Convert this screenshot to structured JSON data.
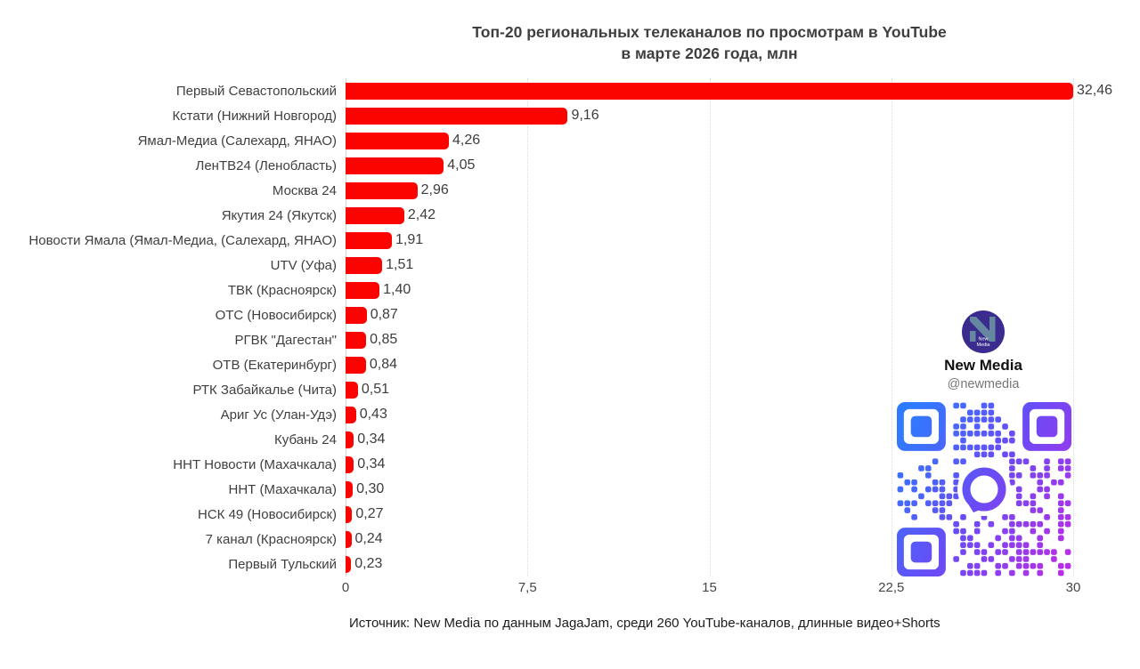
{
  "chart": {
    "title_line1": "Топ-20 региональных телеканалов по просмотрам в YouTube",
    "title_line2": "в марте 2026 года, млн",
    "source": "Источник: New Media по данным JagaJam, среди 260 YouTube-каналов, длинные видео+Shorts"
  },
  "chart_data": {
    "type": "bar",
    "orientation": "horizontal",
    "title": "Топ-20 региональных телеканалов по просмотрам в YouTube в марте 2026 года, млн",
    "categories": [
      "Первый Севастопольский",
      "Кстати (Нижний Новгород)",
      "Ямал-Медиа (Салехард, ЯНАО)",
      "ЛенТВ24 (Ленобласть)",
      "Москва 24",
      "Якутия 24 (Якутск)",
      "Новости Ямала (Ямал-Медиа, (Салехард, ЯНАО)",
      "UTV (Уфа)",
      "ТВК (Красноярск)",
      "ОТС (Новосибирск)",
      "РГВК \"Дагестан\"",
      "ОТВ (Екатеринбург)",
      "РТК Забайкалье (Чита)",
      "Ариг Ус (Улан-Удэ)",
      "Кубань 24",
      "ННТ Новости (Махачкала)",
      "ННТ (Махачкала)",
      "НСК 49 (Новосибирск)",
      "7 канал (Красноярск)",
      "Первый Тульский"
    ],
    "values": [
      32.46,
      9.16,
      4.26,
      4.05,
      2.96,
      2.42,
      1.91,
      1.51,
      1.4,
      0.87,
      0.85,
      0.84,
      0.51,
      0.43,
      0.34,
      0.34,
      0.3,
      0.27,
      0.24,
      0.23
    ],
    "value_labels": [
      "32,46",
      "9,16",
      "4,26",
      "4,05",
      "2,96",
      "2,42",
      "1,91",
      "1,51",
      "1,40",
      "0,87",
      "0,85",
      "0,84",
      "0,51",
      "0,43",
      "0,34",
      "0,34",
      "0,30",
      "0,27",
      "0,24",
      "0,23"
    ],
    "xlabel": "",
    "ylabel": "",
    "xlim": [
      0,
      30
    ],
    "x_ticks": [
      0,
      7.5,
      15,
      22.5,
      30
    ],
    "x_tick_labels": [
      "0",
      "7,5",
      "15",
      "22,5",
      "30"
    ],
    "grid": "dotted-vertical",
    "legend": "none",
    "bar_color": "#fb0400"
  },
  "branding": {
    "name": "New Media",
    "handle": "@newmedia",
    "logo_line1": "New",
    "logo_line2": "Media",
    "logo_bg": "#3a2b8e",
    "logo_letter_color": "#6587a0",
    "qr_color_start": "#2f7bff",
    "qr_color_mid": "#6a4bf5",
    "qr_color_end": "#b52fe8"
  }
}
